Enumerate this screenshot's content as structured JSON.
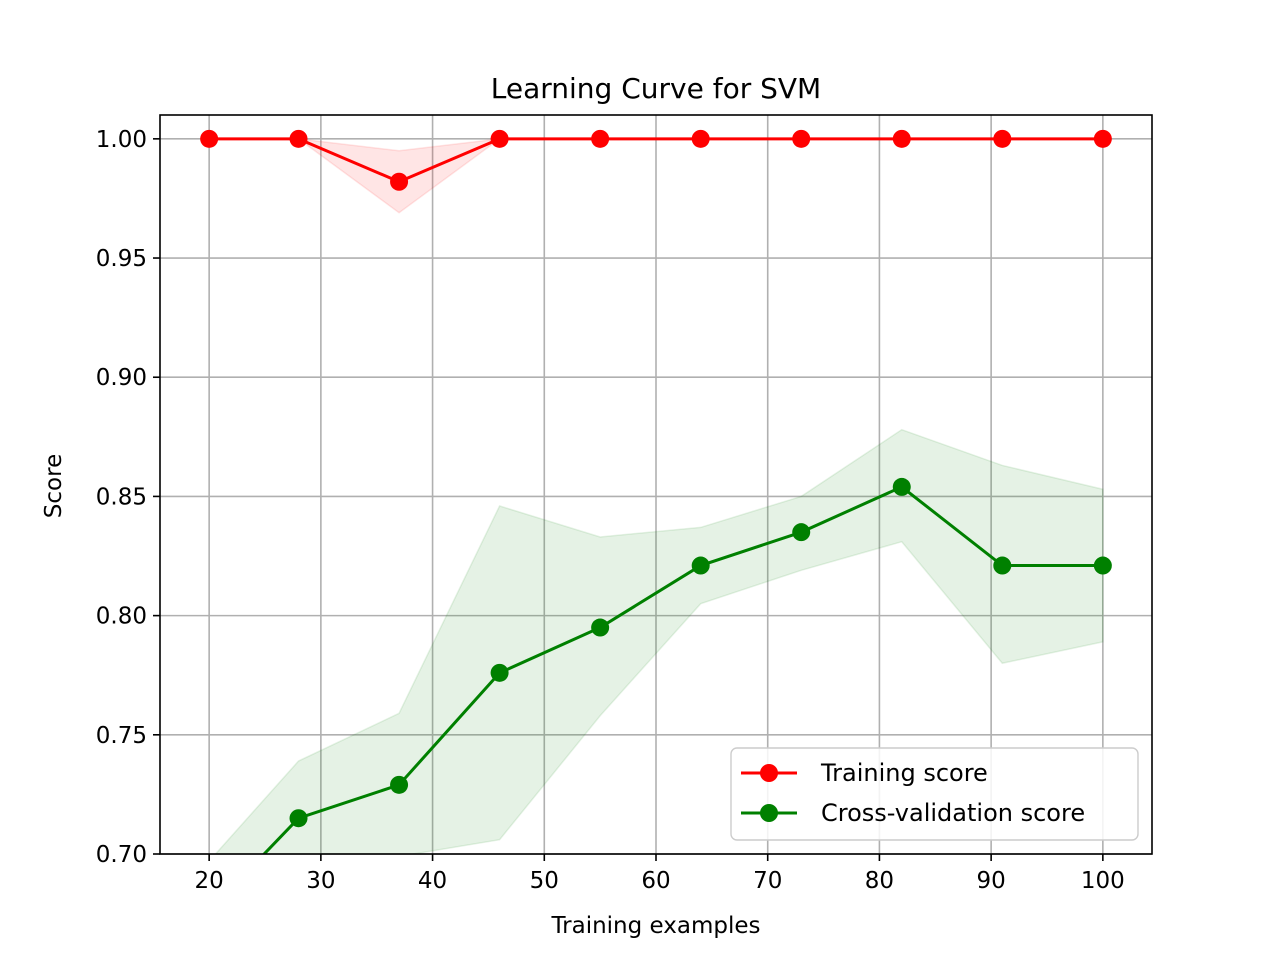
{
  "chart_data": {
    "type": "line",
    "title": "Learning Curve for SVM",
    "xlabel": "Training examples",
    "ylabel": "Score",
    "xlim": [
      15.6,
      104.4
    ],
    "ylim": [
      0.7,
      1.01
    ],
    "xticks": [
      20,
      30,
      40,
      50,
      60,
      70,
      80,
      90,
      100
    ],
    "yticks": [
      0.7,
      0.75,
      0.8,
      0.85,
      0.9,
      0.95,
      1.0
    ],
    "ytick_labels": [
      "0.70",
      "0.75",
      "0.80",
      "0.85",
      "0.90",
      "0.95",
      "1.00"
    ],
    "grid": true,
    "legend_position": "lower-right",
    "x": [
      20,
      28,
      37,
      46,
      55,
      64,
      73,
      82,
      91,
      100
    ],
    "series": [
      {
        "name": "Training score",
        "color": "#ff0000",
        "band_color": "#ff0000",
        "values": [
          1.0,
          1.0,
          0.982,
          1.0,
          1.0,
          1.0,
          1.0,
          1.0,
          1.0,
          1.0
        ],
        "band_lower": [
          1.0,
          1.0,
          0.969,
          1.0,
          1.0,
          1.0,
          1.0,
          1.0,
          1.0,
          1.0
        ],
        "band_upper": [
          1.0,
          1.0,
          0.995,
          1.0,
          1.0,
          1.0,
          1.0,
          1.0,
          1.0,
          1.0
        ]
      },
      {
        "name": "Cross-validation score",
        "color": "#008000",
        "band_color": "#008000",
        "values": [
          0.676,
          0.715,
          0.729,
          0.776,
          0.795,
          0.821,
          0.835,
          0.854,
          0.821,
          0.821
        ],
        "band_lower": [
          0.64,
          0.69,
          0.699,
          0.706,
          0.758,
          0.805,
          0.819,
          0.831,
          0.78,
          0.789
        ],
        "band_upper": [
          0.697,
          0.739,
          0.759,
          0.846,
          0.833,
          0.837,
          0.85,
          0.878,
          0.863,
          0.853
        ]
      }
    ]
  }
}
